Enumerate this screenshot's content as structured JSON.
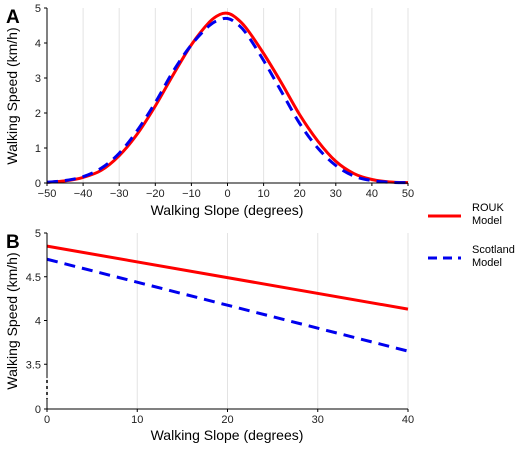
{
  "chart_data": [
    {
      "panel": "A",
      "type": "line",
      "xlabel": "Walking Slope (degrees)",
      "ylabel": "Walking Speed (km/h)",
      "xlim": [
        -50,
        50
      ],
      "ylim": [
        0,
        5
      ],
      "xticks": [
        "−50",
        "−40",
        "−30",
        "−20",
        "−10",
        "0",
        "10",
        "20",
        "30",
        "40",
        "50"
      ],
      "yticks": [
        "0",
        "1",
        "2",
        "3",
        "4",
        "5"
      ],
      "grid": "vertical",
      "series": [
        {
          "name": "ROUK Model",
          "color": "#ff0000",
          "dash": "solid",
          "x": [
            -50,
            -45,
            -40,
            -35,
            -30,
            -25,
            -20,
            -15,
            -10,
            -5,
            -2,
            0,
            2,
            5,
            10,
            15,
            20,
            25,
            30,
            35,
            40,
            45,
            50
          ],
          "y": [
            0.02,
            0.06,
            0.16,
            0.36,
            0.78,
            1.4,
            2.2,
            3.1,
            3.95,
            4.6,
            4.82,
            4.85,
            4.75,
            4.45,
            3.7,
            2.85,
            1.95,
            1.2,
            0.62,
            0.27,
            0.1,
            0.03,
            0.01
          ]
        },
        {
          "name": "Scotland Model",
          "color": "#0000ee",
          "dash": "dashed",
          "x": [
            -50,
            -45,
            -40,
            -35,
            -30,
            -25,
            -20,
            -15,
            -10,
            -5,
            -2,
            0,
            2,
            5,
            10,
            15,
            20,
            25,
            30,
            35,
            40,
            45,
            50
          ],
          "y": [
            0.02,
            0.07,
            0.18,
            0.42,
            0.85,
            1.5,
            2.3,
            3.2,
            3.95,
            4.5,
            4.67,
            4.7,
            4.6,
            4.3,
            3.5,
            2.6,
            1.7,
            1.0,
            0.5,
            0.2,
            0.07,
            0.02,
            0.01
          ]
        }
      ]
    },
    {
      "panel": "B",
      "type": "line",
      "xlabel": "Walking Slope (degrees)",
      "ylabel": "Walking Speed (km/h)",
      "xlim": [
        0,
        40
      ],
      "ylim": [
        3.0,
        5.0
      ],
      "y_axis_break": true,
      "xticks": [
        "0",
        "10",
        "20",
        "30",
        "40"
      ],
      "yticks": [
        "0",
        "3.5",
        "4",
        "4.5",
        "5"
      ],
      "grid": "vertical",
      "series": [
        {
          "name": "ROUK Model",
          "color": "#ff0000",
          "dash": "solid",
          "x": [
            0,
            40
          ],
          "y": [
            4.85,
            4.13
          ]
        },
        {
          "name": "Scotland Model",
          "color": "#0000ee",
          "dash": "dashed",
          "x": [
            0,
            40
          ],
          "y": [
            4.7,
            3.65
          ]
        }
      ]
    }
  ],
  "legend": {
    "placement": "right",
    "items": [
      {
        "line1": "ROUK",
        "line2": "Model",
        "color": "#ff0000",
        "dash": "solid"
      },
      {
        "line1": "Scotland",
        "line2": "Model",
        "color": "#0000ee",
        "dash": "dashed"
      }
    ]
  }
}
